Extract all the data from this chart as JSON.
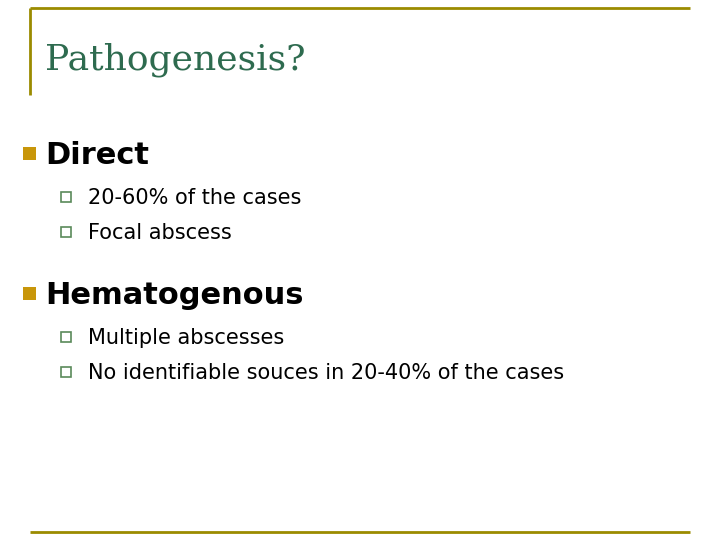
{
  "title": "Pathogenesis?",
  "title_color": "#2E6B4F",
  "title_fontsize": 26,
  "background_color": "#FFFFFF",
  "border_color": "#9B8B00",
  "bullet1_text": "Direct",
  "bullet1_marker_color": "#C8960A",
  "bullet1_fontsize": 22,
  "bullet2_text": "Hematogenous",
  "bullet2_marker_color": "#C8960A",
  "bullet2_fontsize": 22,
  "sub1_items": [
    "20-60% of the cases",
    "Focal abscess"
  ],
  "sub2_items": [
    "Multiple abscesses",
    "No identifiable souces in 20-40% of the cases"
  ],
  "sub_fontsize": 15,
  "sub_color": "#000000",
  "bullet_color": "#000000",
  "sub_square_edge_color": "#5A8A5A"
}
